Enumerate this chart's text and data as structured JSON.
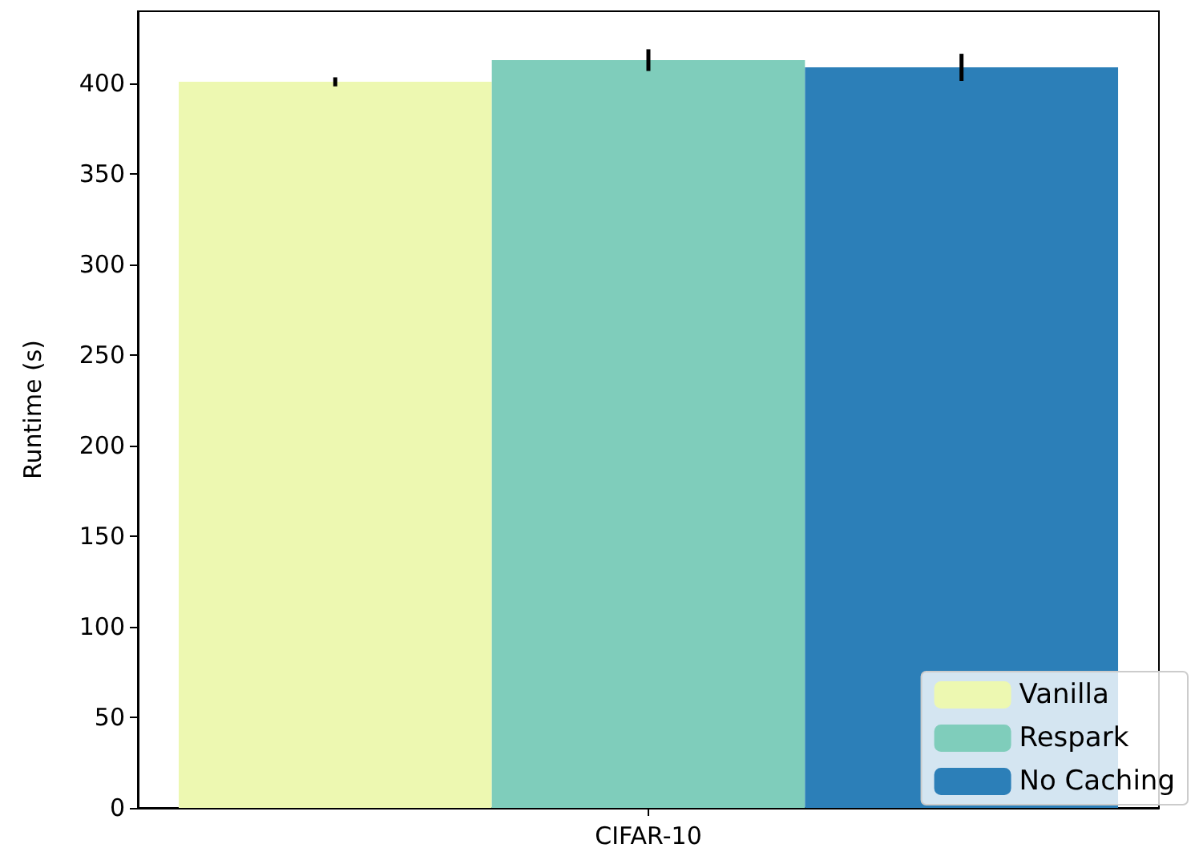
{
  "chart_data": {
    "type": "bar",
    "ylabel": "Runtime (s)",
    "categories": [
      "CIFAR-10"
    ],
    "series": [
      {
        "name": "Vanilla",
        "color": "#edf8b1",
        "values": [
          401
        ],
        "errors": [
          2.5
        ]
      },
      {
        "name": "Respark",
        "color": "#7fcdbb",
        "values": [
          413
        ],
        "errors": [
          6
        ]
      },
      {
        "name": "No Caching",
        "color": "#2c7fb8",
        "values": [
          409
        ],
        "errors": [
          7.5
        ]
      }
    ],
    "ylim": [
      0,
      440
    ],
    "yticks": [
      0,
      50,
      100,
      150,
      200,
      250,
      300,
      350,
      400
    ],
    "grid": false,
    "legend": "bottom right"
  }
}
